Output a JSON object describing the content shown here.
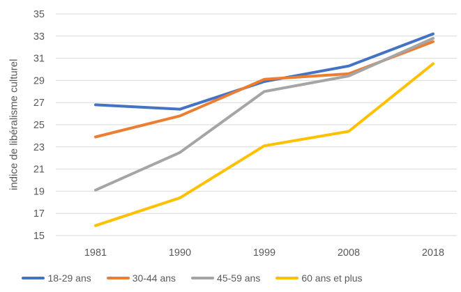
{
  "chart_data": {
    "type": "line",
    "title": "",
    "xlabel": "",
    "ylabel": "indice de libéralisme culturel",
    "categories": [
      "1981",
      "1990",
      "1999",
      "2008",
      "2018"
    ],
    "series": [
      {
        "name": "18-29 ans",
        "color": "#4472C4",
        "values": [
          26.8,
          26.4,
          28.9,
          30.3,
          33.2
        ]
      },
      {
        "name": "30-44 ans",
        "color": "#ED7D31",
        "values": [
          23.9,
          25.8,
          29.1,
          29.6,
          32.5
        ]
      },
      {
        "name": "45-59 ans",
        "color": "#A5A5A5",
        "values": [
          19.1,
          22.5,
          28.0,
          29.4,
          32.8
        ]
      },
      {
        "name": "60 ans et plus",
        "color": "#FFC000",
        "values": [
          15.9,
          18.4,
          23.1,
          24.4,
          30.5
        ]
      }
    ],
    "ylim": [
      15,
      35
    ],
    "ytick_step": 2,
    "grid": true,
    "legend_position": "bottom",
    "styles": {
      "gridline_color": "#D9D9D9",
      "tick_label_color": "#595959",
      "line_width": 4
    }
  }
}
